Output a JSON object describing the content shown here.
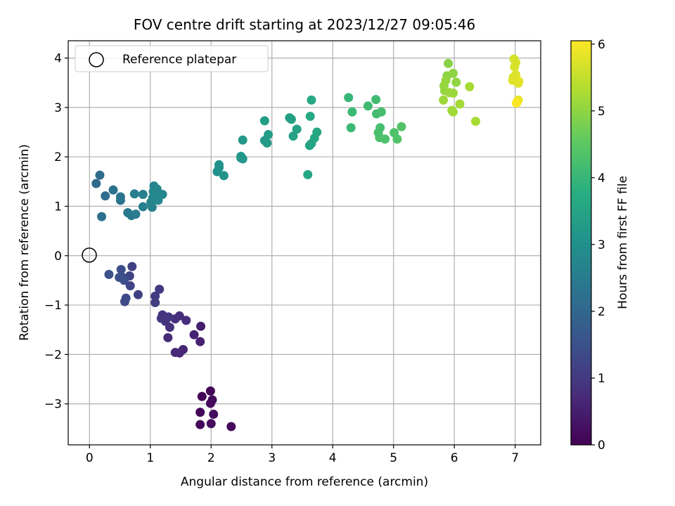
{
  "chart_data": {
    "type": "scatter",
    "title": "FOV centre drift starting at 2023/12/27 09:05:46",
    "xlabel": "Angular distance from reference (arcmin)",
    "ylabel": "Rotation from reference (arcmin)",
    "xlim": [
      -0.35,
      7.42
    ],
    "ylim": [
      -3.83,
      4.35
    ],
    "xticks": [
      0,
      1,
      2,
      3,
      4,
      5,
      6,
      7
    ],
    "yticks": [
      -3,
      -2,
      -1,
      0,
      1,
      2,
      3,
      4
    ],
    "xtick_labels": [
      "0",
      "1",
      "2",
      "3",
      "4",
      "5",
      "6",
      "7"
    ],
    "ytick_labels": [
      "−3",
      "−2",
      "−1",
      "0",
      "1",
      "2",
      "3",
      "4"
    ],
    "grid": true,
    "colormap": "viridis",
    "colorbar": {
      "label": "Hours from first FF file",
      "range": [
        0,
        6.05
      ],
      "ticks": [
        0,
        1,
        2,
        3,
        4,
        5,
        6
      ],
      "tick_labels": [
        "0",
        "1",
        "2",
        "3",
        "4",
        "5",
        "6"
      ]
    },
    "legend": {
      "entries": [
        "Reference platepar"
      ],
      "placement": "top-left"
    },
    "reference_point": {
      "x": 0,
      "y": 0
    },
    "series": [
      {
        "name": "",
        "points": [
          {
            "x": 1.85,
            "y": -2.85,
            "c": 0.05
          },
          {
            "x": 1.82,
            "y": -3.17,
            "c": 0.08
          },
          {
            "x": 1.82,
            "y": -3.42,
            "c": 0.1
          },
          {
            "x": 1.99,
            "y": -2.74,
            "c": 0.12
          },
          {
            "x": 2.02,
            "y": -2.92,
            "c": 0.15
          },
          {
            "x": 1.99,
            "y": -2.99,
            "c": 0.17
          },
          {
            "x": 2.04,
            "y": -3.21,
            "c": 0.2
          },
          {
            "x": 2.0,
            "y": -3.4,
            "c": 0.22
          },
          {
            "x": 2.33,
            "y": -3.46,
            "c": 0.18
          },
          {
            "x": 1.83,
            "y": -1.43,
            "c": 0.5
          },
          {
            "x": 1.82,
            "y": -1.74,
            "c": 0.55
          },
          {
            "x": 1.72,
            "y": -1.6,
            "c": 0.58
          },
          {
            "x": 1.54,
            "y": -1.9,
            "c": 0.62
          },
          {
            "x": 1.48,
            "y": -1.97,
            "c": 0.65
          },
          {
            "x": 1.41,
            "y": -1.96,
            "c": 0.68
          },
          {
            "x": 1.29,
            "y": -1.66,
            "c": 0.72
          },
          {
            "x": 1.59,
            "y": -1.31,
            "c": 0.75
          },
          {
            "x": 1.48,
            "y": -1.22,
            "c": 0.78
          },
          {
            "x": 1.41,
            "y": -1.28,
            "c": 0.82
          },
          {
            "x": 1.32,
            "y": -1.45,
            "c": 0.85
          },
          {
            "x": 1.2,
            "y": -1.2,
            "c": 0.88
          },
          {
            "x": 1.25,
            "y": -1.33,
            "c": 0.92
          },
          {
            "x": 1.3,
            "y": -1.24,
            "c": 0.95
          },
          {
            "x": 1.18,
            "y": -1.27,
            "c": 0.98
          },
          {
            "x": 1.15,
            "y": -0.68,
            "c": 1.02
          },
          {
            "x": 1.08,
            "y": -0.82,
            "c": 1.05
          },
          {
            "x": 1.08,
            "y": -0.95,
            "c": 1.08
          },
          {
            "x": 0.8,
            "y": -0.79,
            "c": 1.12
          },
          {
            "x": 0.7,
            "y": -0.22,
            "c": 1.15
          },
          {
            "x": 0.66,
            "y": -0.41,
            "c": 1.2
          },
          {
            "x": 0.67,
            "y": -0.61,
            "c": 1.25
          },
          {
            "x": 0.6,
            "y": -0.86,
            "c": 1.3
          },
          {
            "x": 0.58,
            "y": -0.93,
            "c": 1.35
          },
          {
            "x": 0.53,
            "y": -0.43,
            "c": 1.38
          },
          {
            "x": 0.52,
            "y": -0.28,
            "c": 1.42
          },
          {
            "x": 0.57,
            "y": -0.5,
            "c": 1.45
          },
          {
            "x": 0.49,
            "y": -0.44,
            "c": 1.48
          },
          {
            "x": 0.32,
            "y": -0.38,
            "c": 1.52
          },
          {
            "x": 0.11,
            "y": 1.46,
            "c": 2.05
          },
          {
            "x": 0.17,
            "y": 1.63,
            "c": 2.1
          },
          {
            "x": 0.26,
            "y": 1.21,
            "c": 2.15
          },
          {
            "x": 0.2,
            "y": 0.79,
            "c": 2.2
          },
          {
            "x": 0.39,
            "y": 1.33,
            "c": 2.25
          },
          {
            "x": 0.51,
            "y": 1.12,
            "c": 2.3
          },
          {
            "x": 0.51,
            "y": 1.19,
            "c": 2.35
          },
          {
            "x": 0.63,
            "y": 0.87,
            "c": 2.4
          },
          {
            "x": 0.69,
            "y": 0.81,
            "c": 2.45
          },
          {
            "x": 0.76,
            "y": 0.84,
            "c": 2.5
          },
          {
            "x": 0.74,
            "y": 1.25,
            "c": 2.55
          },
          {
            "x": 0.88,
            "y": 1.24,
            "c": 2.58
          },
          {
            "x": 0.88,
            "y": 0.99,
            "c": 2.62
          },
          {
            "x": 1.03,
            "y": 0.98,
            "c": 2.65
          },
          {
            "x": 1.01,
            "y": 1.08,
            "c": 2.68
          },
          {
            "x": 1.04,
            "y": 1.17,
            "c": 2.7
          },
          {
            "x": 1.06,
            "y": 1.41,
            "c": 2.72
          },
          {
            "x": 1.11,
            "y": 1.35,
            "c": 2.74
          },
          {
            "x": 1.13,
            "y": 1.12,
            "c": 2.76
          },
          {
            "x": 1.05,
            "y": 1.3,
            "c": 2.78
          },
          {
            "x": 1.2,
            "y": 1.24,
            "c": 2.8
          },
          {
            "x": 1.08,
            "y": 1.19,
            "c": 2.82
          },
          {
            "x": 2.1,
            "y": 1.7,
            "c": 3.0
          },
          {
            "x": 2.13,
            "y": 1.78,
            "c": 3.02
          },
          {
            "x": 2.13,
            "y": 1.84,
            "c": 3.05
          },
          {
            "x": 2.21,
            "y": 1.62,
            "c": 3.08
          },
          {
            "x": 2.49,
            "y": 1.98,
            "c": 3.12
          },
          {
            "x": 2.52,
            "y": 1.96,
            "c": 3.15
          },
          {
            "x": 2.49,
            "y": 2.01,
            "c": 3.18
          },
          {
            "x": 2.52,
            "y": 2.34,
            "c": 3.2
          },
          {
            "x": 2.88,
            "y": 2.33,
            "c": 3.25
          },
          {
            "x": 2.92,
            "y": 2.28,
            "c": 3.28
          },
          {
            "x": 2.94,
            "y": 2.45,
            "c": 3.3
          },
          {
            "x": 2.88,
            "y": 2.73,
            "c": 3.33
          },
          {
            "x": 3.29,
            "y": 2.79,
            "c": 3.38
          },
          {
            "x": 3.32,
            "y": 2.76,
            "c": 3.4
          },
          {
            "x": 3.35,
            "y": 2.42,
            "c": 3.43
          },
          {
            "x": 3.41,
            "y": 2.56,
            "c": 3.46
          },
          {
            "x": 3.62,
            "y": 2.23,
            "c": 3.5
          },
          {
            "x": 3.65,
            "y": 2.27,
            "c": 3.52
          },
          {
            "x": 3.7,
            "y": 2.38,
            "c": 3.55
          },
          {
            "x": 3.74,
            "y": 2.5,
            "c": 3.58
          },
          {
            "x": 3.63,
            "y": 2.82,
            "c": 3.62
          },
          {
            "x": 3.65,
            "y": 3.15,
            "c": 3.65
          },
          {
            "x": 3.59,
            "y": 1.64,
            "c": 3.6
          },
          {
            "x": 4.26,
            "y": 3.2,
            "c": 4.0
          },
          {
            "x": 4.32,
            "y": 2.91,
            "c": 4.05
          },
          {
            "x": 4.3,
            "y": 2.59,
            "c": 4.08
          },
          {
            "x": 4.58,
            "y": 3.03,
            "c": 4.12
          },
          {
            "x": 4.71,
            "y": 3.16,
            "c": 4.15
          },
          {
            "x": 4.72,
            "y": 2.87,
            "c": 4.18
          },
          {
            "x": 4.8,
            "y": 2.91,
            "c": 4.2
          },
          {
            "x": 4.78,
            "y": 2.59,
            "c": 4.22
          },
          {
            "x": 4.75,
            "y": 2.49,
            "c": 4.25
          },
          {
            "x": 4.77,
            "y": 2.39,
            "c": 4.28
          },
          {
            "x": 4.86,
            "y": 2.36,
            "c": 4.3
          },
          {
            "x": 5.01,
            "y": 2.49,
            "c": 4.33
          },
          {
            "x": 5.06,
            "y": 2.36,
            "c": 4.36
          },
          {
            "x": 5.13,
            "y": 2.61,
            "c": 4.38
          },
          {
            "x": 5.9,
            "y": 3.89,
            "c": 4.95
          },
          {
            "x": 5.88,
            "y": 3.64,
            "c": 4.98
          },
          {
            "x": 5.98,
            "y": 3.69,
            "c": 5.0
          },
          {
            "x": 6.03,
            "y": 3.51,
            "c": 5.02
          },
          {
            "x": 5.83,
            "y": 3.44,
            "c": 5.04
          },
          {
            "x": 5.86,
            "y": 3.55,
            "c": 5.06
          },
          {
            "x": 5.84,
            "y": 3.34,
            "c": 5.08
          },
          {
            "x": 5.92,
            "y": 3.3,
            "c": 5.1
          },
          {
            "x": 5.98,
            "y": 3.29,
            "c": 5.12
          },
          {
            "x": 5.82,
            "y": 3.15,
            "c": 5.14
          },
          {
            "x": 5.96,
            "y": 2.94,
            "c": 5.16
          },
          {
            "x": 5.98,
            "y": 2.91,
            "c": 5.18
          },
          {
            "x": 6.09,
            "y": 3.07,
            "c": 5.2
          },
          {
            "x": 6.25,
            "y": 3.42,
            "c": 5.22
          },
          {
            "x": 6.35,
            "y": 2.72,
            "c": 5.24
          },
          {
            "x": 6.98,
            "y": 3.98,
            "c": 5.65
          },
          {
            "x": 7.01,
            "y": 3.91,
            "c": 5.68
          },
          {
            "x": 6.99,
            "y": 3.82,
            "c": 5.7
          },
          {
            "x": 6.97,
            "y": 3.61,
            "c": 5.72
          },
          {
            "x": 7.01,
            "y": 3.66,
            "c": 5.74
          },
          {
            "x": 6.96,
            "y": 3.55,
            "c": 5.76
          },
          {
            "x": 7.05,
            "y": 3.49,
            "c": 5.78
          },
          {
            "x": 7.06,
            "y": 3.53,
            "c": 5.8
          },
          {
            "x": 7.05,
            "y": 3.15,
            "c": 5.85
          },
          {
            "x": 7.03,
            "y": 3.1,
            "c": 5.95
          },
          {
            "x": 7.02,
            "y": 3.09,
            "c": 6.03
          }
        ]
      }
    ]
  }
}
